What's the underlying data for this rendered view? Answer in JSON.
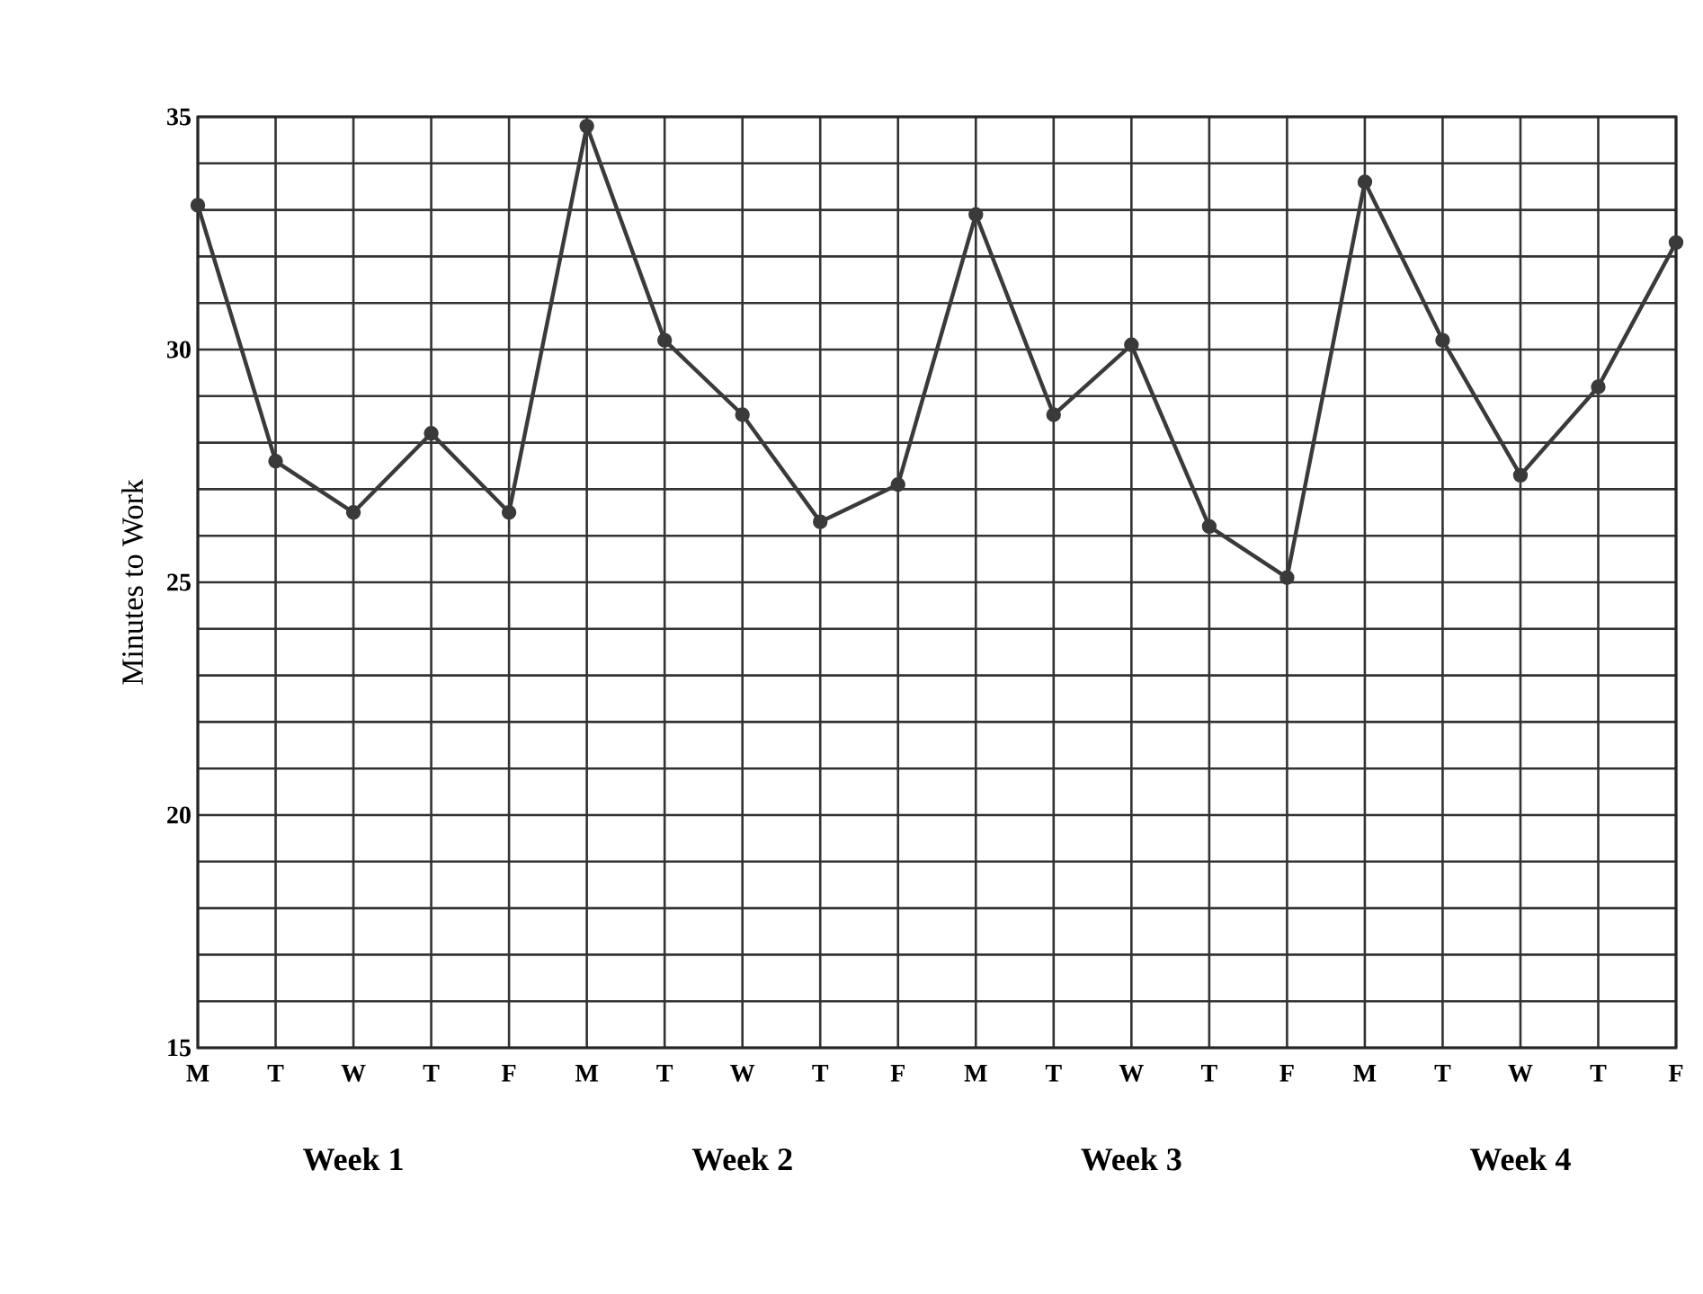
{
  "chart_data": {
    "type": "line",
    "ylabel": "Minutes to Work",
    "categories": [
      "M",
      "T",
      "W",
      "T",
      "F",
      "M",
      "T",
      "W",
      "T",
      "F",
      "M",
      "T",
      "W",
      "T",
      "F",
      "M",
      "T",
      "W",
      "T",
      "F"
    ],
    "values": [
      33.1,
      27.6,
      26.5,
      28.2,
      26.5,
      34.8,
      30.2,
      28.6,
      26.3,
      27.1,
      32.9,
      28.6,
      30.1,
      26.2,
      25.1,
      33.6,
      30.2,
      27.3,
      29.2,
      32.3
    ],
    "color": "#3a3a3a",
    "marker": "circle",
    "line_style": "solid",
    "grid": true,
    "ylim": [
      15,
      35
    ],
    "yticks": [
      15,
      {
        "value": 16,
        "label": null
      },
      {
        "value": 17,
        "label": null
      },
      {
        "value": 18,
        "label": null
      },
      {
        "value": 19,
        "label": null
      },
      20,
      {
        "value": 21,
        "label": null
      },
      {
        "value": 22,
        "label": null
      },
      {
        "value": 23,
        "label": null
      },
      {
        "value": 24,
        "label": null
      },
      25,
      {
        "value": 26,
        "label": null
      },
      {
        "value": 27,
        "label": null
      },
      {
        "value": 28,
        "label": null
      },
      {
        "value": 29,
        "label": null
      },
      30,
      {
        "value": 31,
        "label": null
      },
      {
        "value": 32,
        "label": null
      },
      {
        "value": 33,
        "label": null
      },
      {
        "value": 34,
        "label": null
      },
      35
    ],
    "annotations": [
      "Week 1",
      "Week 2",
      "Week 3",
      "Week 4"
    ]
  }
}
